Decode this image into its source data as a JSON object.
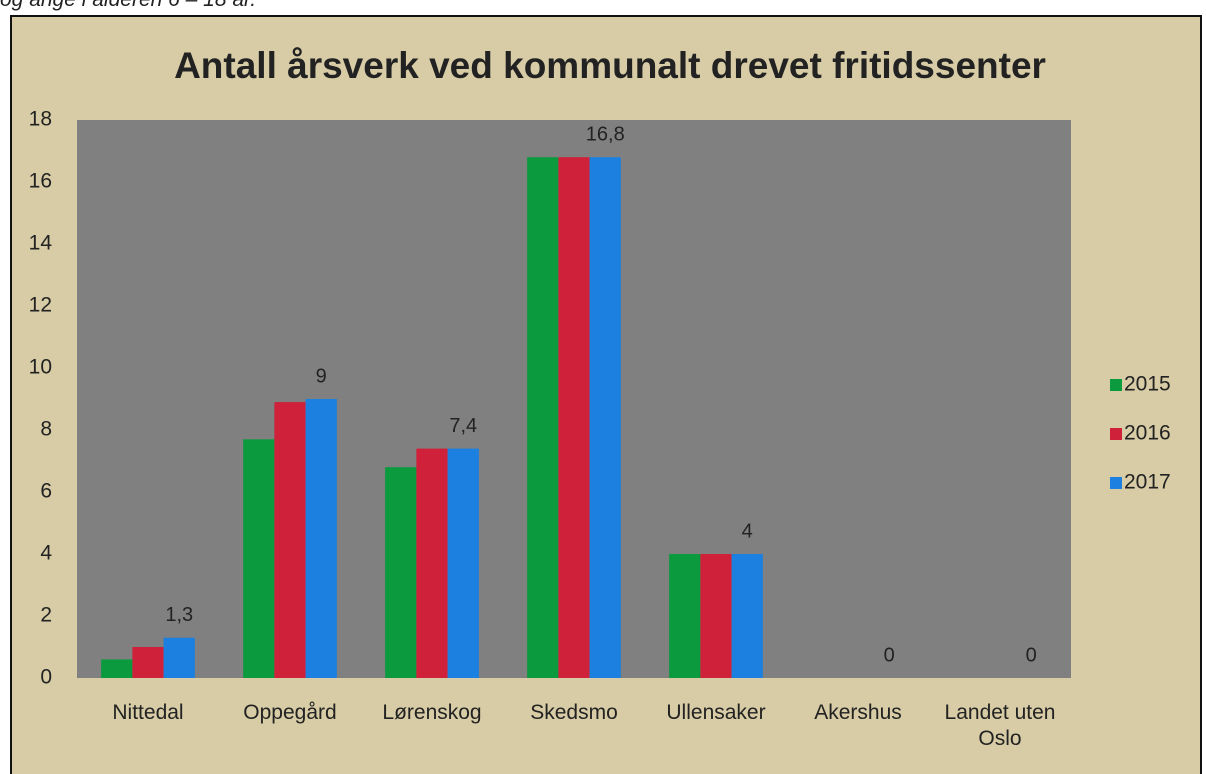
{
  "intro_text": "og ange i alderen 6 – 18 år.",
  "chart_data": {
    "type": "bar",
    "title": "Antall årsverk ved kommunalt drevet fritidssenter",
    "categories": [
      "Nittedal",
      "Oppegård",
      "Lørenskog",
      "Skedsmo",
      "Ullensaker",
      "Akershus",
      "Landet uten Oslo"
    ],
    "series": [
      {
        "name": "2015",
        "color": "#0b9a3d",
        "values": [
          0.6,
          7.7,
          6.8,
          16.8,
          4,
          0,
          0
        ]
      },
      {
        "name": "2016",
        "color": "#cf2139",
        "values": [
          1.0,
          8.9,
          7.4,
          16.8,
          4,
          0,
          0
        ]
      },
      {
        "name": "2017",
        "color": "#1b80e0",
        "values": [
          1.3,
          9,
          7.4,
          16.8,
          4,
          0,
          0
        ],
        "value_labels": [
          "1,3",
          "9",
          "7,4",
          "16,8",
          "4",
          "0",
          "0"
        ]
      }
    ],
    "ylim": [
      0,
      18
    ],
    "yticks": [
      0,
      2,
      4,
      6,
      8,
      10,
      12,
      14,
      16,
      18
    ],
    "grid": false,
    "legend": "right"
  }
}
